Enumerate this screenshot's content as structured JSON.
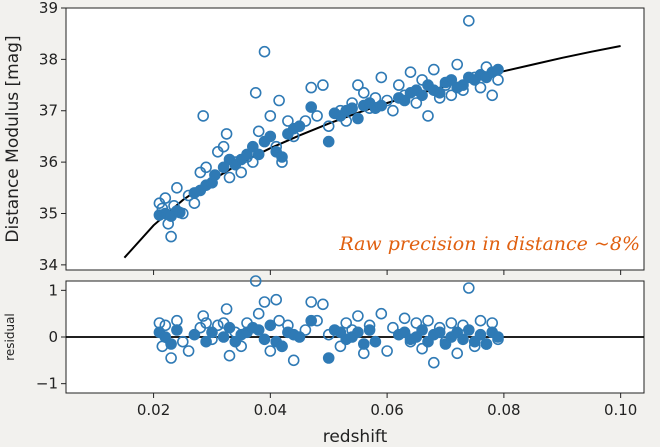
{
  "chart_data": [
    {
      "panel": "main",
      "type": "scatter",
      "title": "",
      "xlabel": "",
      "ylabel": "Distance Modulus [mag]",
      "xlim": [
        0.005,
        0.104
      ],
      "ylim": [
        33.9,
        39.0
      ],
      "xticks": [
        0.02,
        0.04,
        0.06,
        0.08,
        0.1
      ],
      "xtick_labels": [
        "",
        "",
        "",
        "",
        ""
      ],
      "yticks": [
        34,
        35,
        36,
        37,
        38,
        39
      ],
      "ytick_labels": [
        "34",
        "35",
        "36",
        "37",
        "38",
        "39"
      ],
      "grid": false,
      "legend": "none",
      "annotation": "Raw precision in distance ~8%",
      "annotation_color": "#e06010",
      "marker_color": "#2f7ab5",
      "curve_color": "#000000",
      "model_curve": {
        "x": [
          0.015,
          0.02,
          0.025,
          0.03,
          0.035,
          0.04,
          0.045,
          0.05,
          0.055,
          0.06,
          0.065,
          0.07,
          0.075,
          0.08,
          0.085,
          0.09,
          0.095,
          0.1
        ],
        "y": [
          34.14,
          34.77,
          35.26,
          35.65,
          35.99,
          36.27,
          36.52,
          36.75,
          36.96,
          37.15,
          37.32,
          37.48,
          37.63,
          37.77,
          37.9,
          38.03,
          38.15,
          38.26
        ]
      },
      "series": [
        {
          "name": "",
          "marker": "filled",
          "x": [
            0.021,
            0.022,
            0.023,
            0.024,
            0.0245,
            0.027,
            0.028,
            0.029,
            0.03,
            0.0305,
            0.032,
            0.033,
            0.034,
            0.035,
            0.036,
            0.037,
            0.038,
            0.039,
            0.04,
            0.041,
            0.042,
            0.043,
            0.044,
            0.045,
            0.047,
            0.05,
            0.051,
            0.052,
            0.053,
            0.054,
            0.055,
            0.056,
            0.057,
            0.058,
            0.059,
            0.062,
            0.063,
            0.064,
            0.065,
            0.066,
            0.067,
            0.068,
            0.069,
            0.07,
            0.071,
            0.072,
            0.073,
            0.074,
            0.075,
            0.076,
            0.077,
            0.078,
            0.079
          ],
          "y": [
            34.97,
            35.0,
            34.95,
            35.05,
            35.02,
            35.4,
            35.45,
            35.55,
            35.6,
            35.75,
            35.9,
            36.05,
            35.95,
            36.05,
            36.15,
            36.3,
            36.15,
            36.4,
            36.5,
            36.2,
            36.1,
            36.55,
            36.65,
            36.7,
            37.07,
            36.4,
            36.95,
            36.9,
            37.0,
            37.05,
            36.85,
            37.1,
            37.15,
            37.05,
            37.1,
            37.25,
            37.2,
            37.35,
            37.4,
            37.3,
            37.5,
            37.4,
            37.35,
            37.55,
            37.6,
            37.45,
            37.5,
            37.65,
            37.6,
            37.7,
            37.65,
            37.75,
            37.8
          ]
        },
        {
          "name": "",
          "marker": "open",
          "x": [
            0.021,
            0.0215,
            0.022,
            0.0225,
            0.023,
            0.0235,
            0.024,
            0.025,
            0.026,
            0.027,
            0.028,
            0.0285,
            0.029,
            0.03,
            0.031,
            0.032,
            0.0325,
            0.033,
            0.034,
            0.035,
            0.036,
            0.037,
            0.0375,
            0.038,
            0.039,
            0.04,
            0.041,
            0.0415,
            0.042,
            0.043,
            0.044,
            0.046,
            0.047,
            0.048,
            0.049,
            0.05,
            0.051,
            0.052,
            0.053,
            0.054,
            0.055,
            0.056,
            0.057,
            0.058,
            0.059,
            0.06,
            0.061,
            0.062,
            0.063,
            0.064,
            0.065,
            0.066,
            0.067,
            0.068,
            0.069,
            0.07,
            0.071,
            0.072,
            0.073,
            0.074,
            0.075,
            0.076,
            0.077,
            0.078,
            0.079
          ],
          "y": [
            35.2,
            35.1,
            35.3,
            34.8,
            34.55,
            35.15,
            35.5,
            35.0,
            35.35,
            35.2,
            35.8,
            36.9,
            35.9,
            35.6,
            36.2,
            36.3,
            36.55,
            35.7,
            36.0,
            35.8,
            36.1,
            36.0,
            37.35,
            36.6,
            38.15,
            36.9,
            36.3,
            37.2,
            36.0,
            36.8,
            36.5,
            36.8,
            37.45,
            36.9,
            37.5,
            36.7,
            36.95,
            37.0,
            36.8,
            37.15,
            37.5,
            37.35,
            37.05,
            37.25,
            37.65,
            37.2,
            37.0,
            37.5,
            37.3,
            37.75,
            37.15,
            37.6,
            36.9,
            37.8,
            37.25,
            37.5,
            37.3,
            37.9,
            37.4,
            38.75,
            37.65,
            37.45,
            37.85,
            37.3,
            37.6
          ]
        }
      ]
    },
    {
      "panel": "residual",
      "type": "scatter",
      "title": "",
      "xlabel": "redshift",
      "ylabel": "residual",
      "xlim": [
        0.005,
        0.104
      ],
      "ylim": [
        -1.2,
        1.2
      ],
      "xticks": [
        0.02,
        0.04,
        0.06,
        0.08,
        0.1
      ],
      "xtick_labels": [
        "0.02",
        "0.04",
        "0.06",
        "0.08",
        "0.10"
      ],
      "yticks": [
        -1,
        0,
        1
      ],
      "ytick_labels": [
        "−1",
        "0",
        "1"
      ],
      "zero_line": 0,
      "grid": false,
      "legend": "none",
      "marker_color": "#2f7ab5",
      "series": [
        {
          "name": "",
          "marker": "filled",
          "x": [
            0.021,
            0.022,
            0.023,
            0.024,
            0.027,
            0.029,
            0.03,
            0.032,
            0.033,
            0.034,
            0.035,
            0.036,
            0.037,
            0.038,
            0.039,
            0.04,
            0.041,
            0.042,
            0.043,
            0.044,
            0.045,
            0.047,
            0.05,
            0.051,
            0.052,
            0.053,
            0.054,
            0.055,
            0.056,
            0.057,
            0.058,
            0.062,
            0.063,
            0.064,
            0.065,
            0.066,
            0.067,
            0.068,
            0.069,
            0.07,
            0.071,
            0.072,
            0.073,
            0.074,
            0.075,
            0.076,
            0.077,
            0.078,
            0.079
          ],
          "y": [
            0.1,
            0.0,
            -0.15,
            0.15,
            0.05,
            -0.1,
            0.1,
            0.0,
            0.2,
            -0.1,
            0.05,
            0.1,
            0.2,
            0.15,
            -0.05,
            0.25,
            -0.1,
            -0.2,
            0.1,
            0.05,
            0.0,
            0.35,
            -0.45,
            0.15,
            0.1,
            -0.05,
            0.0,
            0.1,
            -0.15,
            0.15,
            -0.1,
            0.05,
            0.1,
            -0.05,
            0.0,
            0.15,
            -0.1,
            0.05,
            0.1,
            -0.15,
            0.0,
            0.1,
            -0.05,
            0.15,
            -0.1,
            0.05,
            -0.15,
            0.1,
            0.0
          ]
        },
        {
          "name": "",
          "marker": "open",
          "x": [
            0.021,
            0.0215,
            0.022,
            0.023,
            0.024,
            0.025,
            0.026,
            0.028,
            0.0285,
            0.029,
            0.03,
            0.031,
            0.032,
            0.0325,
            0.033,
            0.034,
            0.035,
            0.036,
            0.0375,
            0.038,
            0.039,
            0.04,
            0.041,
            0.0415,
            0.042,
            0.043,
            0.044,
            0.046,
            0.047,
            0.048,
            0.049,
            0.05,
            0.052,
            0.053,
            0.054,
            0.055,
            0.056,
            0.057,
            0.059,
            0.06,
            0.061,
            0.063,
            0.064,
            0.065,
            0.066,
            0.067,
            0.068,
            0.069,
            0.07,
            0.071,
            0.072,
            0.073,
            0.074,
            0.075,
            0.076,
            0.077,
            0.078,
            0.079
          ],
          "y": [
            0.3,
            -0.2,
            0.25,
            -0.45,
            0.35,
            -0.1,
            -0.3,
            0.2,
            0.45,
            0.3,
            -0.05,
            0.25,
            0.3,
            0.6,
            -0.4,
            0.1,
            -0.2,
            0.3,
            1.2,
            0.5,
            0.75,
            -0.3,
            0.8,
            0.35,
            -0.2,
            0.25,
            -0.5,
            0.15,
            0.75,
            0.35,
            0.7,
            0.05,
            -0.2,
            0.3,
            0.15,
            0.45,
            -0.35,
            0.25,
            0.5,
            -0.3,
            0.2,
            0.4,
            -0.1,
            0.3,
            -0.25,
            0.35,
            -0.55,
            0.2,
            -0.1,
            0.3,
            -0.35,
            0.25,
            1.05,
            -0.2,
            0.35,
            -0.15,
            0.3,
            -0.05
          ]
        }
      ]
    }
  ]
}
